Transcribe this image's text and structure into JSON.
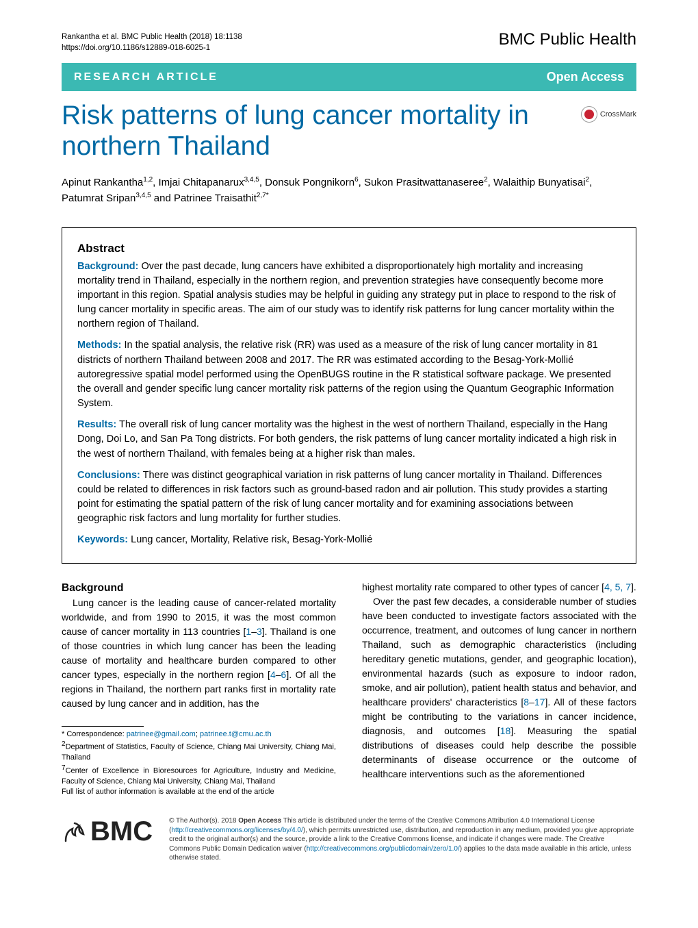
{
  "running_head": {
    "citation": "Rankantha et al. BMC Public Health (2018) 18:1138",
    "doi": "https://doi.org/10.1186/s12889-018-6025-1"
  },
  "journal_name": "BMC Public Health",
  "banner": {
    "left": "RESEARCH ARTICLE",
    "right": "Open Access"
  },
  "title": "Risk patterns of lung cancer mortality in northern Thailand",
  "crossmark_label": "CrossMark",
  "authors_html": "Apinut Rankantha<sup>1,2</sup>, Imjai Chitapanarux<sup>3,4,5</sup>, Donsuk Pongnikorn<sup>6</sup>, Sukon Prasitwattanaseree<sup>2</sup>, Walaithip Bunyatisai<sup>2</sup>, Patumrat Sripan<sup>3,4,5</sup> and Patrinee Traisathit<sup>2,7*</sup>",
  "abstract": {
    "heading": "Abstract",
    "background_label": "Background:",
    "background": "Over the past decade, lung cancers have exhibited a disproportionately high mortality and increasing mortality trend in Thailand, especially in the northern region, and prevention strategies have consequently become more important in this region. Spatial analysis studies may be helpful in guiding any strategy put in place to respond to the risk of lung cancer mortality in specific areas. The aim of our study was to identify risk patterns for lung cancer mortality within the northern region of Thailand.",
    "methods_label": "Methods:",
    "methods": "In the spatial analysis, the relative risk (RR) was used as a measure of the risk of lung cancer mortality in 81 districts of northern Thailand between 2008 and 2017. The RR was estimated according to the Besag-York-Mollié autoregressive spatial model performed using the OpenBUGS routine in the R statistical software package. We presented the overall and gender specific lung cancer mortality risk patterns of the region using the Quantum Geographic Information System.",
    "results_label": "Results:",
    "results": "The overall risk of lung cancer mortality was the highest in the west of northern Thailand, especially in the Hang Dong, Doi Lo, and San Pa Tong districts. For both genders, the risk patterns of lung cancer mortality indicated a high risk in the west of northern Thailand, with females being at a higher risk than males.",
    "conclusions_label": "Conclusions:",
    "conclusions": "There was distinct geographical variation in risk patterns of lung cancer mortality in Thailand. Differences could be related to differences in risk factors such as ground-based radon and air pollution. This study provides a starting point for estimating the spatial pattern of the risk of lung cancer mortality and for examining associations between geographic risk factors and lung mortality for further studies.",
    "keywords_label": "Keywords:",
    "keywords": "Lung cancer, Mortality, Relative risk, Besag-York-Mollié"
  },
  "background_heading": "Background",
  "col1_p1_a": "Lung cancer is the leading cause of cancer-related mortality worldwide, and from 1990 to 2015, it was the most common cause of cancer mortality in 113 countries [",
  "col1_p1_ref1": "1",
  "col1_p1_dash": "–",
  "col1_p1_ref2": "3",
  "col1_p1_b": "]. Thailand is one of those countries in which lung cancer has been the leading cause of mortality and healthcare burden compared to other cancer types, especially in the northern region [",
  "col1_p1_ref3": "4",
  "col1_p1_ref4": "6",
  "col1_p1_c": "]. Of all the regions in Thailand, the northern part ranks first in mortality rate caused by lung cancer and in addition, has the",
  "col2_p1_a": "highest mortality rate compared to other types of cancer [",
  "col2_p1_refs": "4, 5, 7",
  "col2_p1_b": "].",
  "col2_p2_a": "Over the past few decades, a considerable number of studies have been conducted to investigate factors associated with the occurrence, treatment, and outcomes of lung cancer in northern Thailand, such as demographic characteristics (including hereditary genetic mutations, gender, and geographic location), environmental hazards (such as exposure to indoor radon, smoke, and air pollution), patient health status and behavior, and healthcare providers' characteristics [",
  "col2_p2_ref1": "8",
  "col2_p2_ref2": "17",
  "col2_p2_b": "]. All of these factors might be contributing to the variations in cancer incidence, diagnosis, and outcomes [",
  "col2_p2_ref3": "18",
  "col2_p2_c": "]. Measuring the spatial distributions of diseases could help describe the possible determinants of disease occurrence or the outcome of healthcare interventions such as the aforementioned",
  "footnotes": {
    "correspondence_label": "* Correspondence: ",
    "email1": "patrinee@gmail.com",
    "email2": "patrinee.t@cmu.ac.th",
    "aff2": "Department of Statistics, Faculty of Science, Chiang Mai University, Chiang Mai, Thailand",
    "aff7": "Center of Excellence in Bioresources for Agriculture, Industry and Medicine, Faculty of Science, Chiang Mai University, Chiang Mai, Thailand",
    "full_list": "Full list of author information is available at the end of the article"
  },
  "license": {
    "text_a": "© The Author(s). 2018 ",
    "open_access": "Open Access",
    "text_b": " This article is distributed under the terms of the Creative Commons Attribution 4.0 International License (",
    "link1": "http://creativecommons.org/licenses/by/4.0/",
    "text_c": "), which permits unrestricted use, distribution, and reproduction in any medium, provided you give appropriate credit to the original author(s) and the source, provide a link to the Creative Commons license, and indicate if changes were made. The Creative Commons Public Domain Dedication waiver (",
    "link2": "http://creativecommons.org/publicdomain/zero/1.0/",
    "text_d": ") applies to the data made available in this article, unless otherwise stated."
  },
  "colors": {
    "banner_bg": "#3bb9b3",
    "title_color": "#0069a4",
    "link_color": "#0069a4"
  }
}
